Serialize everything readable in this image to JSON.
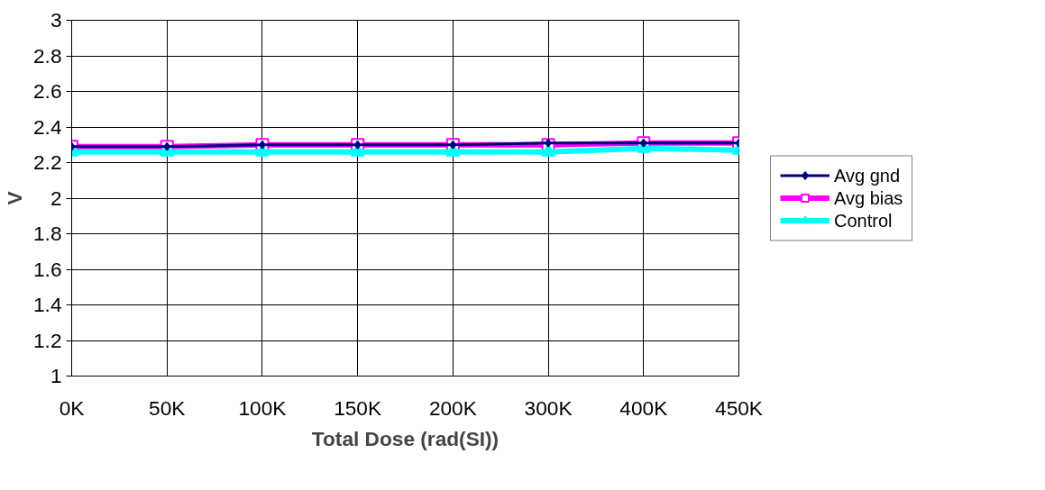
{
  "chart_data": {
    "type": "line",
    "xlabel": "Total Dose (rad(SI))",
    "ylabel": "V",
    "categories": [
      "0K",
      "50K",
      "100K",
      "150K",
      "200K",
      "300K",
      "400K",
      "450K"
    ],
    "series": [
      {
        "name": "Avg gnd",
        "color": "#000080",
        "marker": "diamond",
        "values": [
          2.29,
          2.29,
          2.3,
          2.3,
          2.3,
          2.31,
          2.31,
          2.31
        ]
      },
      {
        "name": "Avg bias",
        "color": "#ff00ff",
        "marker": "square",
        "values": [
          2.29,
          2.29,
          2.3,
          2.3,
          2.3,
          2.3,
          2.31,
          2.31
        ]
      },
      {
        "name": "Control",
        "color": "#00ffff",
        "marker": "triangle",
        "values": [
          2.26,
          2.26,
          2.26,
          2.26,
          2.26,
          2.26,
          2.28,
          2.27
        ]
      }
    ],
    "ylim": [
      1,
      3
    ],
    "yticks": [
      1,
      1.2,
      1.4,
      1.6,
      1.8,
      2,
      2.2,
      2.4,
      2.6,
      2.8,
      3
    ],
    "grid": true,
    "legend": "right",
    "line_style": "solid"
  }
}
